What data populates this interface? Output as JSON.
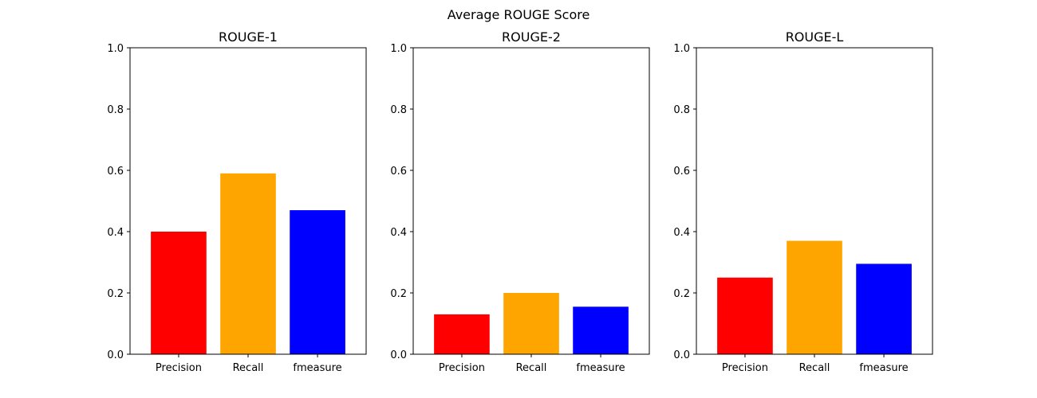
{
  "figure": {
    "suptitle": "Average ROUGE Score"
  },
  "chart_data": [
    {
      "type": "bar",
      "title": "ROUGE-1",
      "categories": [
        "Precision",
        "Recall",
        "fmeasure"
      ],
      "values": [
        0.4,
        0.59,
        0.47
      ],
      "colors": [
        "#ff0000",
        "#ffa500",
        "#0000ff"
      ],
      "ylim": [
        0,
        1.0
      ],
      "yticks": [
        "0.0",
        "0.2",
        "0.4",
        "0.6",
        "0.8",
        "1.0"
      ],
      "grid": false
    },
    {
      "type": "bar",
      "title": "ROUGE-2",
      "categories": [
        "Precision",
        "Recall",
        "fmeasure"
      ],
      "values": [
        0.13,
        0.2,
        0.155
      ],
      "colors": [
        "#ff0000",
        "#ffa500",
        "#0000ff"
      ],
      "ylim": [
        0,
        1.0
      ],
      "yticks": [
        "0.0",
        "0.2",
        "0.4",
        "0.6",
        "0.8",
        "1.0"
      ],
      "grid": false
    },
    {
      "type": "bar",
      "title": "ROUGE-L",
      "categories": [
        "Precision",
        "Recall",
        "fmeasure"
      ],
      "values": [
        0.25,
        0.37,
        0.295
      ],
      "colors": [
        "#ff0000",
        "#ffa500",
        "#0000ff"
      ],
      "ylim": [
        0,
        1.0
      ],
      "yticks": [
        "0.0",
        "0.2",
        "0.4",
        "0.6",
        "0.8",
        "1.0"
      ],
      "grid": false
    }
  ]
}
